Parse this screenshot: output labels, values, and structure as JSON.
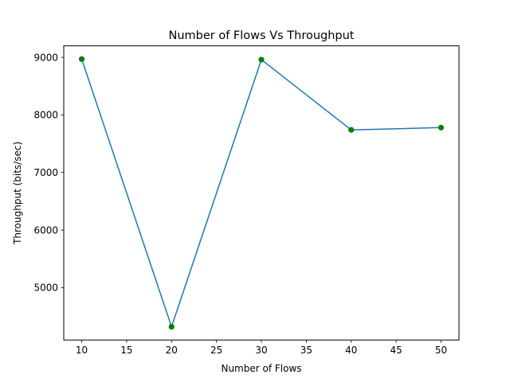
{
  "chart_data": {
    "type": "line",
    "title": "Number of Flows Vs Throughput",
    "xlabel": "Number of Flows",
    "ylabel": "Throughput (bits/sec)",
    "x": [
      10,
      20,
      30,
      40,
      50
    ],
    "series": [
      {
        "values": [
          8970,
          4320,
          8960,
          7740,
          7780
        ]
      }
    ],
    "xlim": [
      8,
      52
    ],
    "ylim": [
      4090,
      9200
    ],
    "xticks": [
      10,
      15,
      20,
      25,
      30,
      35,
      40,
      45,
      50
    ],
    "yticks": [
      5000,
      6000,
      7000,
      8000,
      9000
    ],
    "xtick_labels": [
      "10",
      "15",
      "20",
      "25",
      "30",
      "35",
      "40",
      "45",
      "50"
    ],
    "ytick_labels": [
      "5000",
      "6000",
      "7000",
      "8000",
      "9000"
    ],
    "grid": false,
    "legend": false,
    "line_color": "#1f77b4",
    "marker_color": "#008000"
  }
}
